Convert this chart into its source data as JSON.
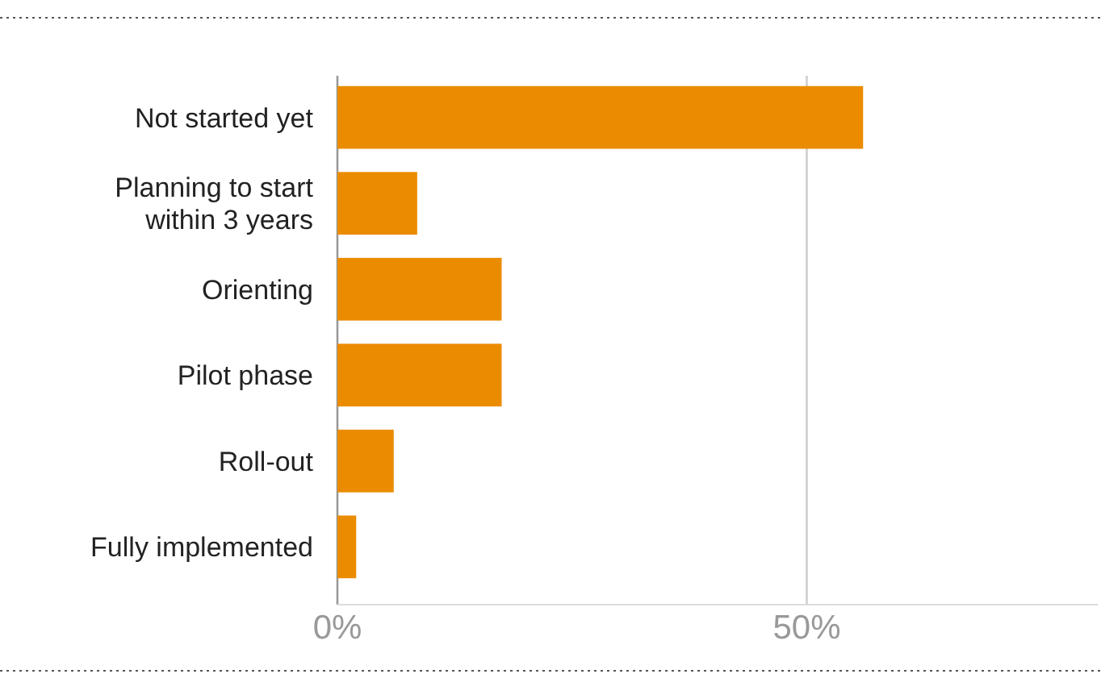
{
  "chart_data": {
    "type": "bar",
    "orientation": "horizontal",
    "categories": [
      "Not started yet",
      "Planning to start within 3 years",
      "Orienting",
      "Pilot phase",
      "Roll-out",
      "Fully implemented"
    ],
    "values": [
      56,
      8.5,
      17.5,
      17.5,
      6,
      2
    ],
    "color": "#eb8c00",
    "xlim": [
      0,
      81
    ],
    "xticks": [
      {
        "value": 0,
        "label": "0%"
      },
      {
        "value": 50,
        "label": "50%"
      }
    ],
    "grid": "x"
  }
}
